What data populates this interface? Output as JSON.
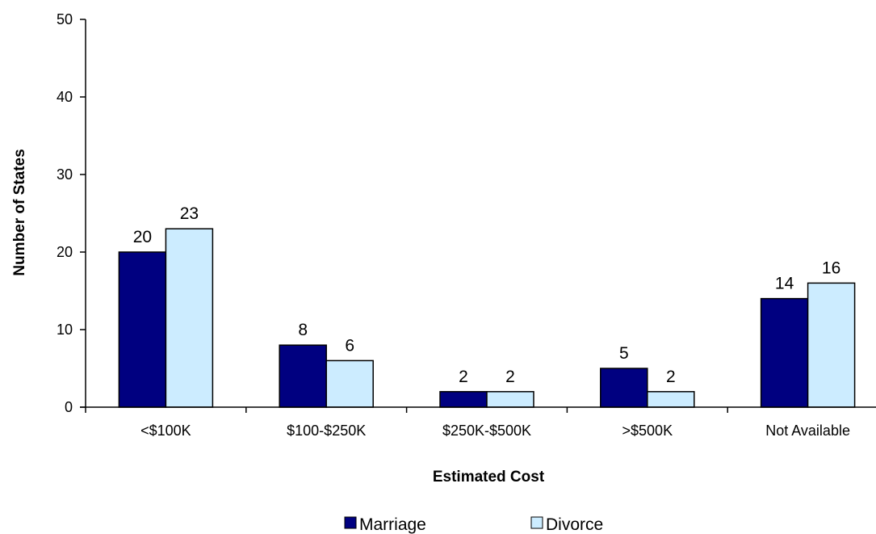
{
  "chart_data": {
    "type": "bar",
    "categories": [
      "<$100K",
      "$100-$250K",
      "$250K-$500K",
      ">$500K",
      "Not Available"
    ],
    "series": [
      {
        "name": "Marriage",
        "values": [
          20,
          8,
          2,
          5,
          14
        ],
        "color": "#000080"
      },
      {
        "name": "Divorce",
        "values": [
          23,
          6,
          2,
          2,
          16
        ],
        "color": "#CCECFF"
      }
    ],
    "xlabel": "Estimated Cost",
    "ylabel": "Number of States",
    "ylim": [
      0,
      50
    ],
    "yticks": [
      0,
      10,
      20,
      30,
      40,
      50
    ],
    "grid": false,
    "legend_position": "bottom",
    "data_labels": true
  }
}
